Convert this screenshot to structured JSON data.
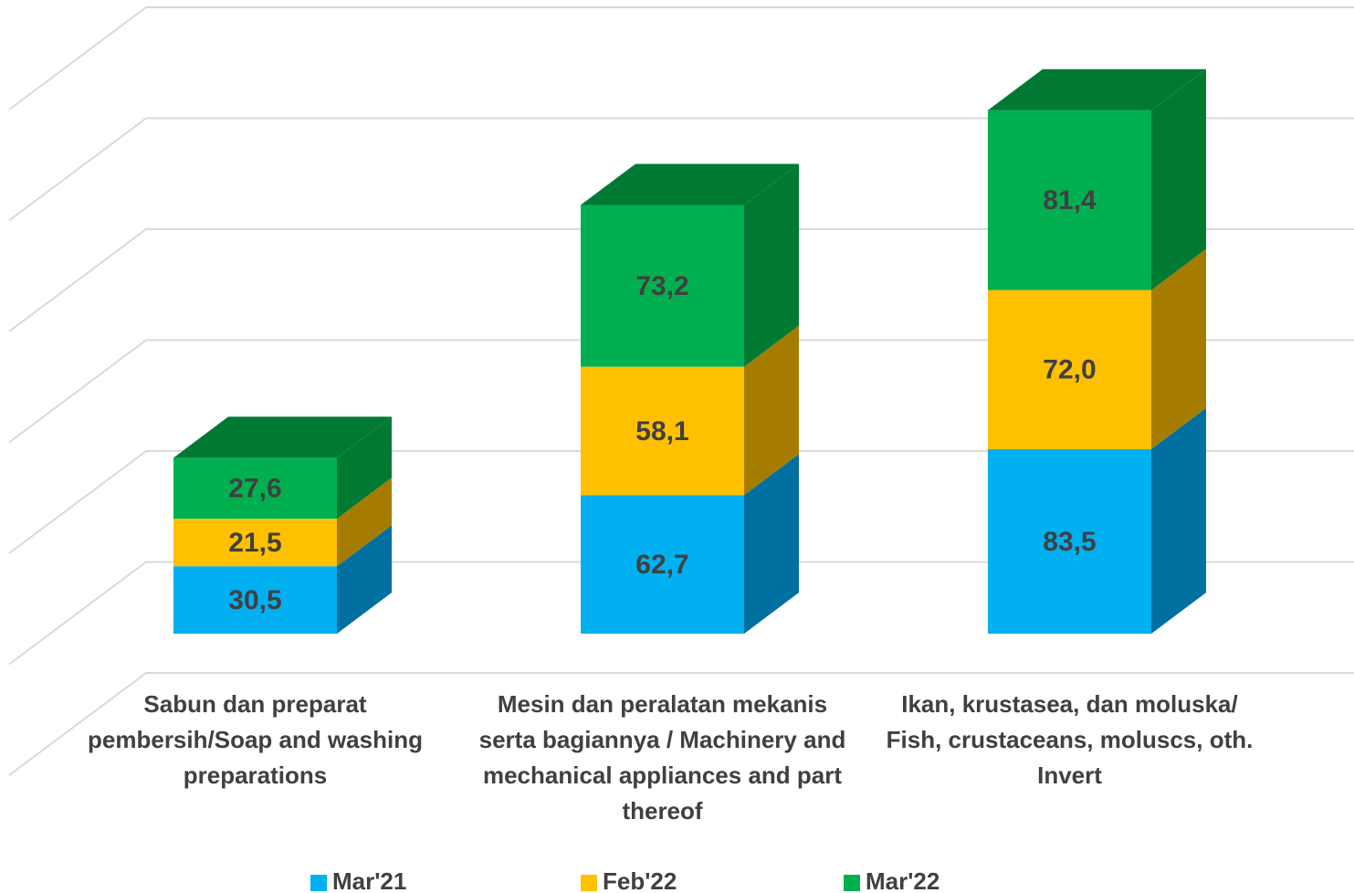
{
  "chart_data": {
    "type": "bar3d_stacked",
    "categories": [
      "Sabun dan preparat pembersih/Soap and washing preparations",
      "Mesin dan peralatan  mekanis serta bagiannya   / Machinery and mechanical appliances and part thereof",
      "Ikan, krustasea, dan moluska/ Fish, crustaceans, moluscs, oth. Invert"
    ],
    "series": [
      {
        "name": "Mar'21",
        "color": "#00b0f0",
        "side_color": "#0070a0",
        "values": [
          30.5,
          62.7,
          83.5
        ],
        "value_labels": [
          "30,5",
          "62,7",
          "83,5"
        ]
      },
      {
        "name": "Feb'22",
        "color": "#ffc000",
        "side_color": "#a67c00",
        "values": [
          21.5,
          58.1,
          72.0
        ],
        "value_labels": [
          "21,5",
          "58,1",
          "72,0"
        ]
      },
      {
        "name": "Mar'22",
        "color": "#00b050",
        "side_color": "#007a33",
        "values": [
          27.6,
          73.2,
          81.4
        ],
        "value_labels": [
          "27,6",
          "73,2",
          "81,4"
        ]
      }
    ],
    "ylim": [
      0,
      300
    ],
    "yticks": [
      0,
      50,
      100,
      150,
      200,
      250,
      300
    ],
    "grid": true,
    "legend": "bottom"
  }
}
